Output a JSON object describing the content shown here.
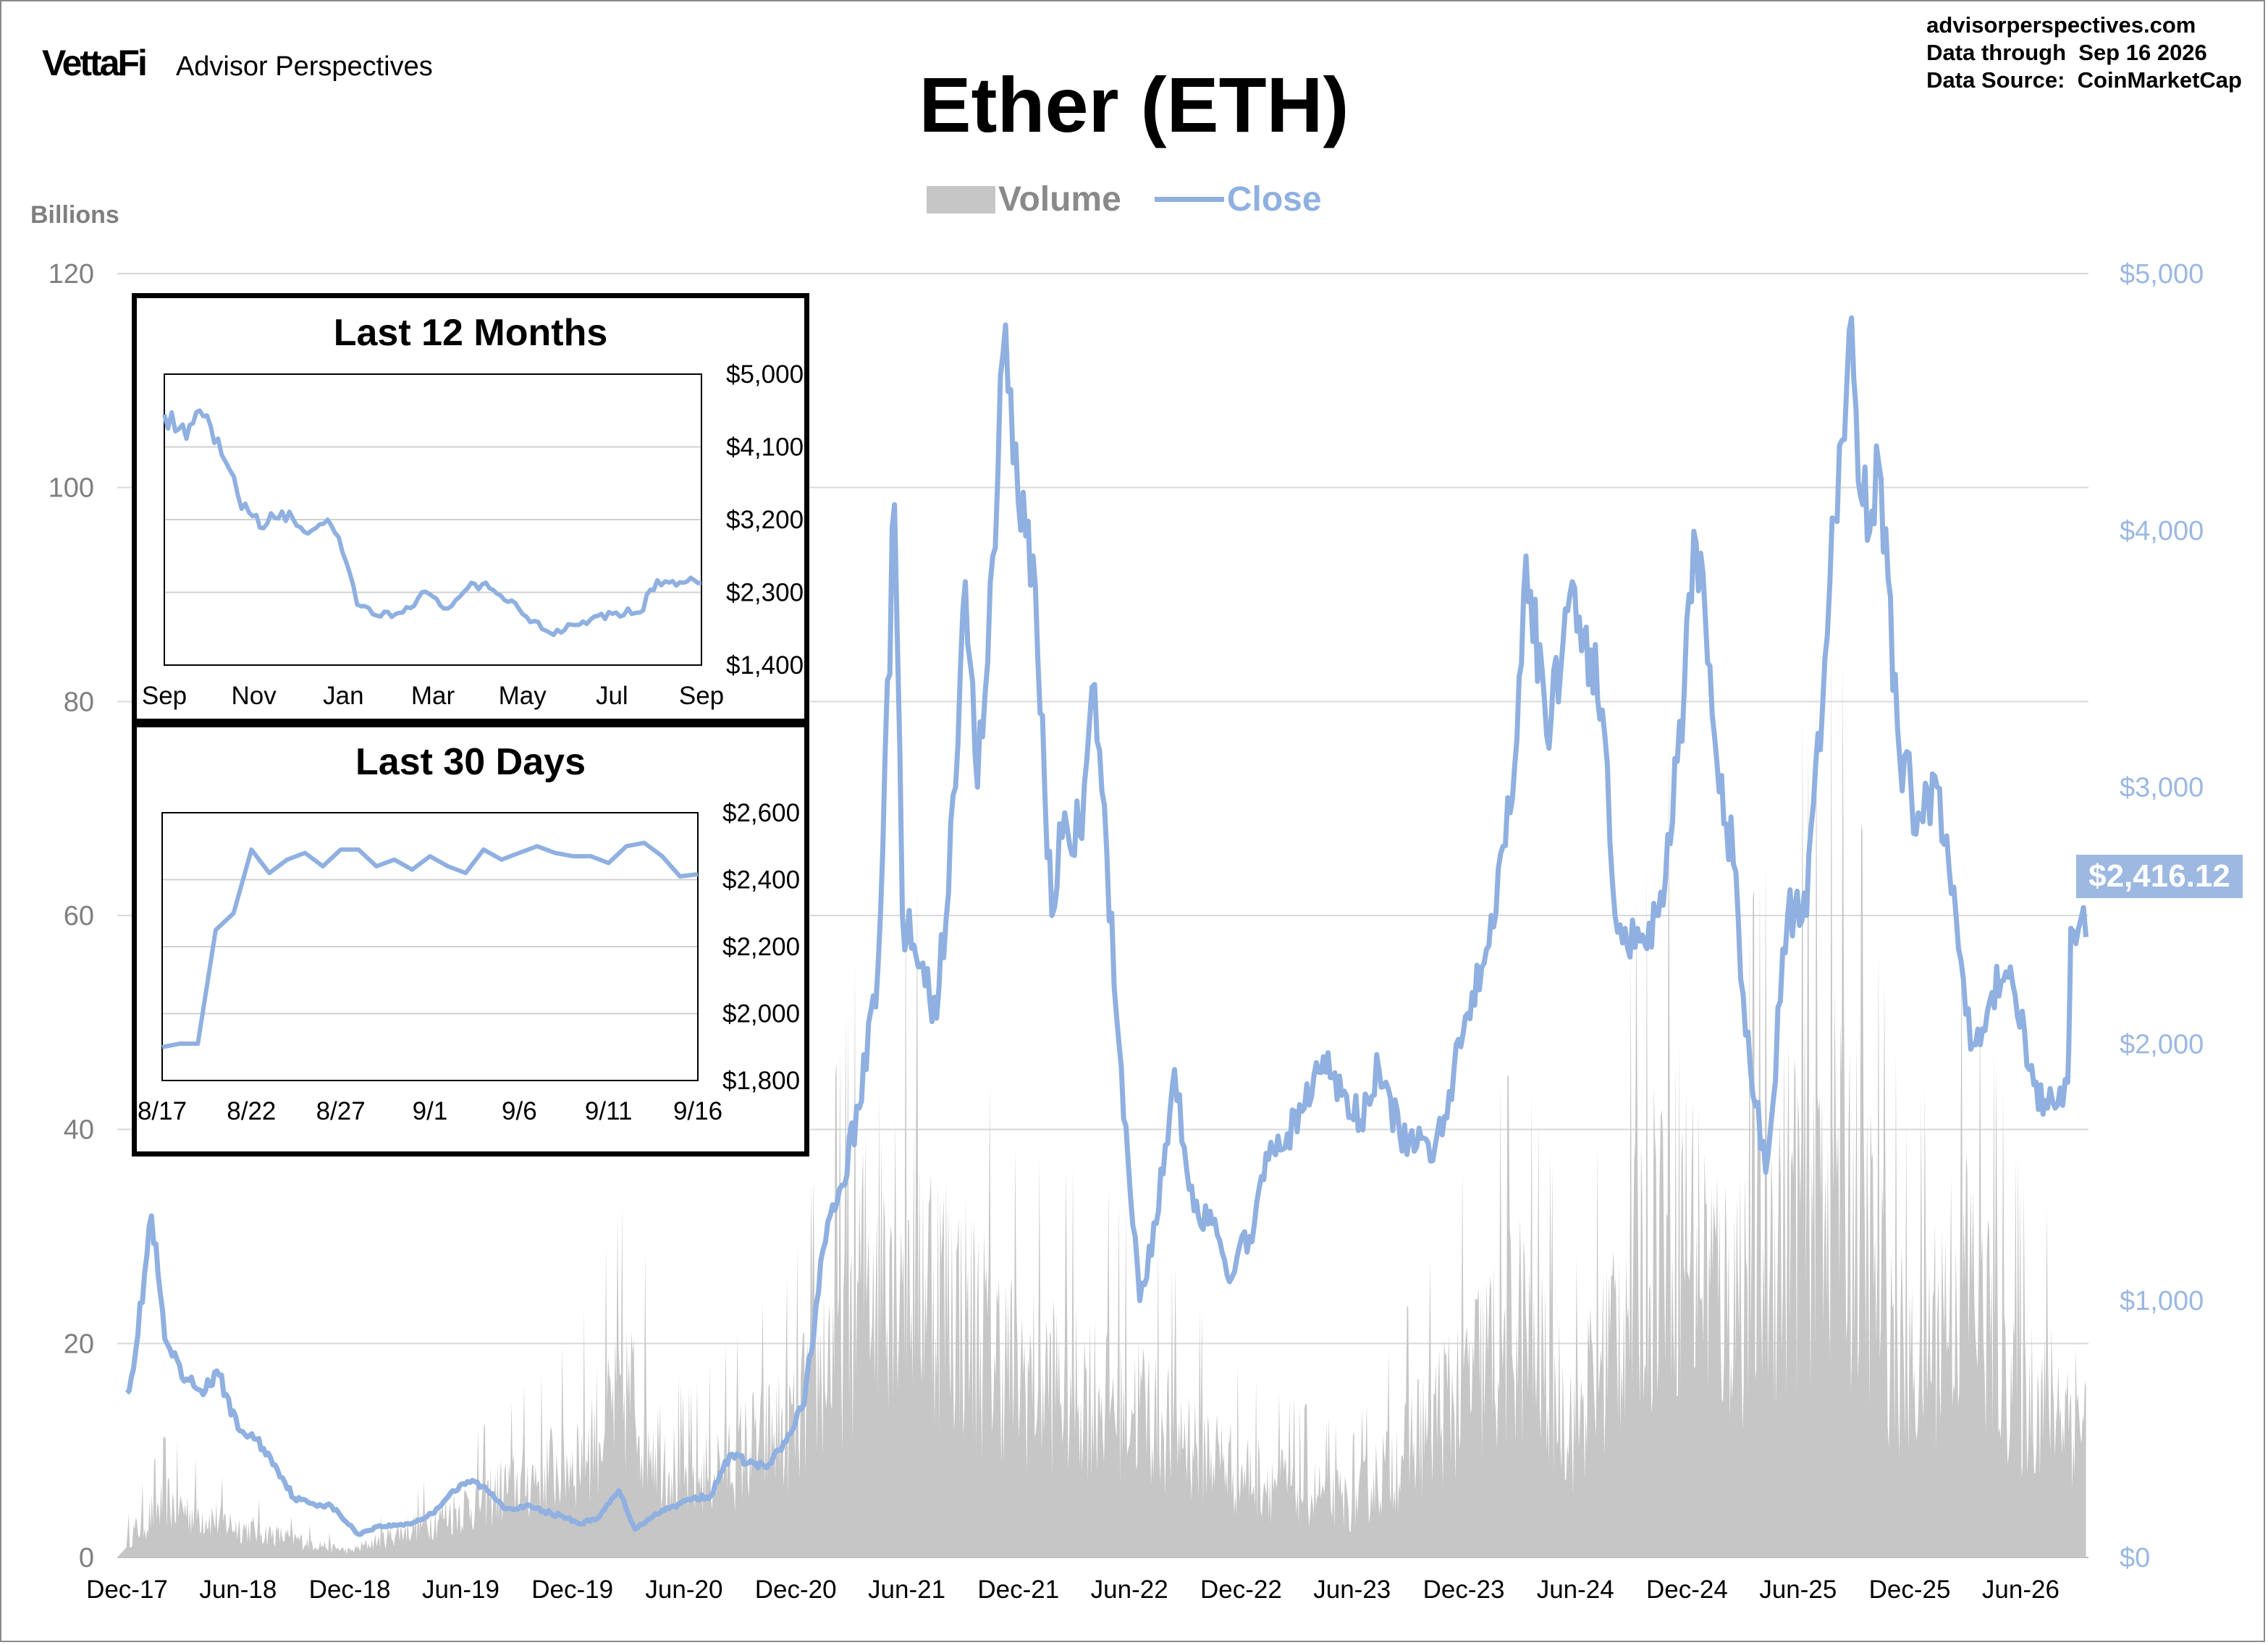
{
  "header": {
    "brand_logo": "VettaFi",
    "brand_name": "Advisor Perspectives",
    "title": "Ether (ETH)",
    "source_lines": [
      "advisorperspectives.com",
      "Data through  Sep 16 2026",
      "Data Source:  CoinMarketCap"
    ]
  },
  "colors": {
    "volume": "#c6c6c6",
    "close": "#8fb0e0",
    "axis_left": "#7f7f7f",
    "axis_right": "#9bb8e2"
  },
  "last_value_label": "$2,416.12",
  "chart_data": [
    {
      "type": "line",
      "title": "Ether (ETH)",
      "legend": [
        "Volume",
        "Close"
      ],
      "legend_position": "top-center",
      "left_axis": {
        "label": "Billions",
        "ticks": [
          "0",
          "20",
          "40",
          "60",
          "80",
          "100",
          "120"
        ],
        "range": [
          0,
          120
        ]
      },
      "right_axis": {
        "ticks": [
          "$0",
          "$1,000",
          "$2,000",
          "$3,000",
          "$4,000",
          "$5,000"
        ],
        "range": [
          0,
          5000
        ]
      },
      "x_ticks": [
        "Dec-17",
        "Jun-18",
        "Dec-18",
        "Jun-19",
        "Dec-19",
        "Jun-20",
        "Dec-20",
        "Jun-21",
        "Dec-21",
        "Jun-22",
        "Dec-22",
        "Jun-23",
        "Dec-23",
        "Jun-24",
        "Dec-24",
        "Jun-25",
        "Dec-25",
        "Jun-26"
      ],
      "grid": true,
      "series": [
        {
          "name": "Close",
          "axis": "right",
          "x": [
            "2017-12-01",
            "2017-12-15",
            "2018-01-10",
            "2018-02-01",
            "2018-03-01",
            "2018-04-01",
            "2018-05-01",
            "2018-06-01",
            "2018-07-01",
            "2018-08-01",
            "2018-09-01",
            "2018-10-01",
            "2018-11-01",
            "2018-12-15",
            "2019-01-15",
            "2019-02-15",
            "2019-03-15",
            "2019-04-15",
            "2019-05-15",
            "2019-06-20",
            "2019-07-15",
            "2019-08-15",
            "2019-09-15",
            "2019-10-15",
            "2019-11-15",
            "2019-12-15",
            "2020-01-15",
            "2020-02-15",
            "2020-03-13",
            "2020-04-15",
            "2020-05-15",
            "2020-06-15",
            "2020-07-15",
            "2020-08-15",
            "2020-09-15",
            "2020-10-15",
            "2020-11-15",
            "2020-12-15",
            "2021-01-15",
            "2021-02-15",
            "2021-03-15",
            "2021-04-15",
            "2021-05-12",
            "2021-05-25",
            "2021-06-20",
            "2021-07-20",
            "2021-08-20",
            "2021-09-05",
            "2021-09-25",
            "2021-10-20",
            "2021-11-10",
            "2021-12-05",
            "2021-12-25",
            "2022-01-25",
            "2022-02-15",
            "2022-03-15",
            "2022-04-05",
            "2022-05-15",
            "2022-06-18",
            "2022-07-15",
            "2022-08-14",
            "2022-09-15",
            "2022-10-15",
            "2022-11-08",
            "2022-12-15",
            "2023-01-15",
            "2023-02-15",
            "2023-03-15",
            "2023-04-15",
            "2023-05-15",
            "2023-06-15",
            "2023-07-15",
            "2023-08-18",
            "2023-09-15",
            "2023-10-15",
            "2023-11-15",
            "2023-12-15",
            "2024-01-15",
            "2024-02-15",
            "2024-03-12",
            "2024-04-15",
            "2024-05-27",
            "2024-06-15",
            "2024-07-15",
            "2024-08-05",
            "2024-09-15",
            "2024-10-15",
            "2024-11-15",
            "2024-12-16",
            "2025-01-15",
            "2025-02-15",
            "2025-03-15",
            "2025-04-09",
            "2025-05-15",
            "2025-06-15",
            "2025-07-15",
            "2025-08-24",
            "2025-09-15",
            "2025-10-15",
            "2025-11-15",
            "2025-12-15",
            "2026-01-15",
            "2026-02-15",
            "2026-03-15",
            "2026-04-15",
            "2026-05-15",
            "2026-06-15",
            "2026-07-15",
            "2026-08-17",
            "2026-08-22",
            "2026-09-16"
          ],
          "y": [
            640,
            800,
            1330,
            850,
            700,
            650,
            710,
            500,
            460,
            360,
            230,
            210,
            200,
            90,
            120,
            125,
            135,
            170,
            250,
            300,
            260,
            190,
            200,
            180,
            160,
            130,
            160,
            260,
            110,
            170,
            200,
            230,
            240,
            400,
            370,
            350,
            450,
            600,
            1200,
            1450,
            1750,
            2300,
            4100,
            2500,
            2300,
            2100,
            3000,
            3800,
            3000,
            3900,
            4800,
            4000,
            3900,
            2500,
            2900,
            2800,
            3400,
            2000,
            1000,
            1300,
            1900,
            1350,
            1300,
            1100,
            1250,
            1550,
            1650,
            1750,
            1950,
            1800,
            1700,
            1900,
            1650,
            1600,
            1600,
            1900,
            2200,
            2500,
            2900,
            3900,
            3200,
            3800,
            3600,
            3300,
            2500,
            2400,
            2500,
            3100,
            3950,
            3200,
            2700,
            1900,
            1500,
            2500,
            2500,
            3500,
            4780,
            4100,
            4200,
            3100,
            2900,
            3000,
            2500,
            2000,
            2200,
            2300,
            1900,
            1750,
            1850,
            2450,
            2416.12
          ]
        },
        {
          "name": "Volume",
          "axis": "left",
          "x": [
            "2017-12",
            "2018-02",
            "2018-06",
            "2018-12",
            "2019-06",
            "2019-12",
            "2020-03",
            "2020-06",
            "2020-12",
            "2021-05",
            "2021-09",
            "2021-12",
            "2022-06",
            "2022-12",
            "2023-06",
            "2023-12",
            "2024-03",
            "2024-06",
            "2024-11",
            "2025-02",
            "2025-08",
            "2025-12",
            "2026-03",
            "2026-06",
            "2026-09"
          ],
          "y": [
            3,
            9,
            5,
            1,
            8,
            16,
            27,
            12,
            22,
            55,
            40,
            30,
            26,
            14,
            9,
            28,
            38,
            22,
            60,
            42,
            68,
            30,
            48,
            28,
            24
          ]
        }
      ]
    },
    {
      "type": "line",
      "title": "Last 12 Months",
      "x_ticks": [
        "Sep",
        "Nov",
        "Jan",
        "Mar",
        "May",
        "Jul",
        "Sep"
      ],
      "y_ticks": [
        "$1,400",
        "$2,300",
        "$3,200",
        "$4,100",
        "$5,000"
      ],
      "range": [
        1400,
        5000
      ],
      "series": [
        {
          "name": "Close",
          "x": [
            "2025-09-16",
            "2025-10-01",
            "2025-10-10",
            "2025-10-25",
            "2025-11-05",
            "2025-11-20",
            "2025-12-05",
            "2025-12-20",
            "2026-01-05",
            "2026-01-15",
            "2026-01-25",
            "2026-02-10",
            "2026-02-25",
            "2026-03-10",
            "2026-03-25",
            "2026-04-10",
            "2026-04-25",
            "2026-05-10",
            "2026-05-20",
            "2026-06-05",
            "2026-06-20",
            "2026-07-05",
            "2026-07-20",
            "2026-08-05",
            "2026-08-17",
            "2026-08-25",
            "2026-09-16"
          ],
          "y": [
            4500,
            4200,
            4550,
            4000,
            3500,
            3100,
            3300,
            3050,
            3200,
            2800,
            2150,
            2000,
            2050,
            2300,
            2100,
            2350,
            2350,
            2200,
            2000,
            1800,
            1900,
            2000,
            2050,
            2050,
            2450,
            2420,
            2416
          ]
        }
      ]
    },
    {
      "type": "line",
      "title": "Last 30 Days",
      "x_ticks": [
        "8/17",
        "8/22",
        "8/27",
        "9/1",
        "9/6",
        "9/11",
        "9/16"
      ],
      "y_ticks": [
        "$1,800",
        "$2,000",
        "$2,200",
        "$2,400",
        "$2,600"
      ],
      "range": [
        1800,
        2600
      ],
      "series": [
        {
          "name": "Close",
          "x": [
            1,
            2,
            3,
            4,
            5,
            6,
            7,
            8,
            9,
            10,
            11,
            12,
            13,
            14,
            15,
            16,
            17,
            18,
            19,
            20,
            21,
            22,
            23,
            24,
            25,
            26,
            27,
            28,
            29,
            30,
            31
          ],
          "y": [
            1900,
            1910,
            1910,
            2250,
            2300,
            2490,
            2420,
            2460,
            2480,
            2440,
            2490,
            2490,
            2440,
            2460,
            2430,
            2470,
            2440,
            2420,
            2490,
            2460,
            2480,
            2500,
            2480,
            2470,
            2470,
            2450,
            2500,
            2510,
            2470,
            2410,
            2416.12
          ]
        }
      ]
    }
  ]
}
